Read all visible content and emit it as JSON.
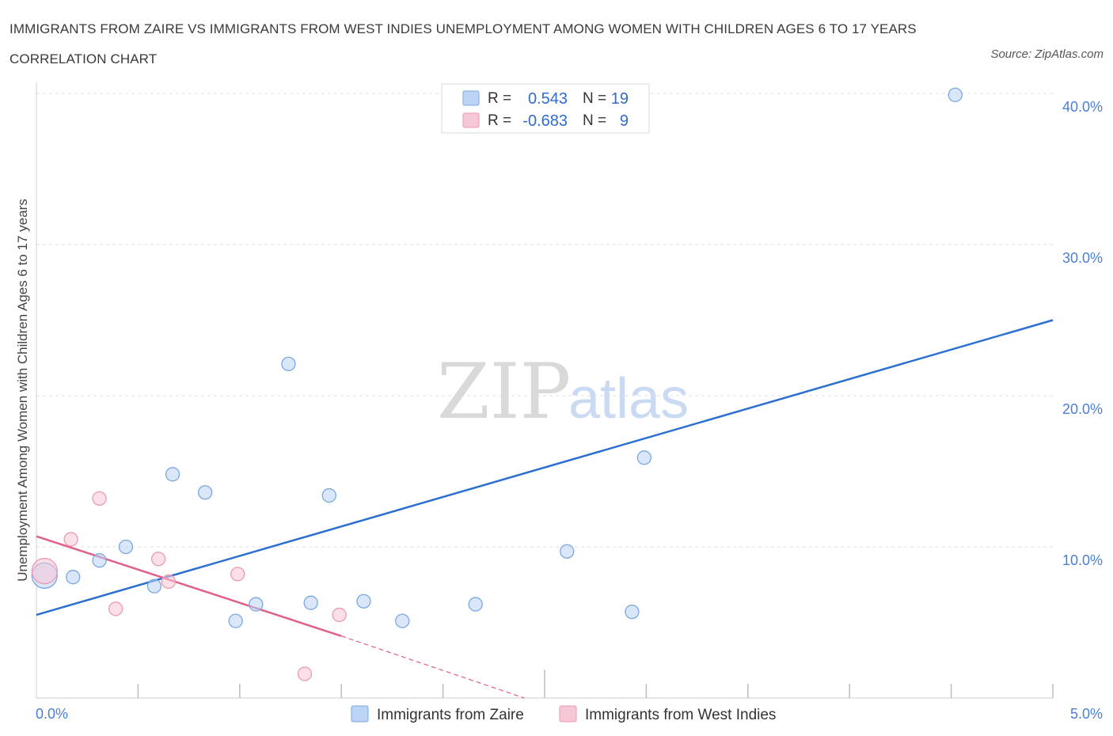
{
  "title": "IMMIGRANTS FROM ZAIRE VS IMMIGRANTS FROM WEST INDIES UNEMPLOYMENT AMONG WOMEN WITH CHILDREN AGES 6 TO 17 YEARS CORRELATION CHART",
  "source": "Source: ZipAtlas.com",
  "watermark": {
    "zip": "ZIP",
    "atlas": "atlas"
  },
  "legend": {
    "r_label": "R =",
    "n_label": "N =",
    "series": [
      {
        "r": "0.543",
        "n": "19"
      },
      {
        "r": "-0.683",
        "n": "9"
      }
    ]
  },
  "colors": {
    "zaire_fill": "#bcd4f5",
    "zaire_stroke": "#7aa7e0",
    "zaire_line": "#2b6fd0",
    "westindies_fill": "#f8c7d6",
    "westindies_stroke": "#ec9ab4",
    "westindies_line": "#e0608a",
    "grid": "#e2e2e2",
    "tick_text": "#4a7fd4"
  },
  "chart_data": {
    "type": "scatter",
    "title": "IMMIGRANTS FROM ZAIRE VS IMMIGRANTS FROM WEST INDIES UNEMPLOYMENT AMONG WOMEN WITH CHILDREN AGES 6 TO 17 YEARS CORRELATION CHART",
    "xlabel": "",
    "ylabel": "Unemployment Among Women with Children Ages 6 to 17 years",
    "xlim": [
      0,
      5
    ],
    "ylim": [
      0,
      40
    ],
    "x_tick_labels": [
      "0.0%",
      "5.0%"
    ],
    "y_ticks": [
      10,
      20,
      30,
      40
    ],
    "y_tick_labels": [
      "10.0%",
      "20.0%",
      "30.0%",
      "40.0%"
    ],
    "grid": true,
    "legend_position": "top-center",
    "series": [
      {
        "name": "Immigrants from Zaire",
        "points": [
          {
            "x": 0.04,
            "y": 8.1,
            "big": true
          },
          {
            "x": 0.18,
            "y": 8.0
          },
          {
            "x": 0.31,
            "y": 9.1
          },
          {
            "x": 0.44,
            "y": 10.0
          },
          {
            "x": 0.58,
            "y": 7.4
          },
          {
            "x": 0.67,
            "y": 14.8
          },
          {
            "x": 0.83,
            "y": 13.6
          },
          {
            "x": 0.98,
            "y": 5.1
          },
          {
            "x": 1.08,
            "y": 6.2
          },
          {
            "x": 1.24,
            "y": 22.1
          },
          {
            "x": 1.35,
            "y": 6.3
          },
          {
            "x": 1.44,
            "y": 13.4
          },
          {
            "x": 1.61,
            "y": 6.4
          },
          {
            "x": 1.8,
            "y": 5.1
          },
          {
            "x": 2.16,
            "y": 6.2
          },
          {
            "x": 2.61,
            "y": 9.7
          },
          {
            "x": 2.93,
            "y": 5.7
          },
          {
            "x": 2.99,
            "y": 15.9
          },
          {
            "x": 4.52,
            "y": 39.9
          }
        ],
        "trend": {
          "x0": 0,
          "y0": 5.5,
          "x1": 5,
          "y1": 25.0
        }
      },
      {
        "name": "Immigrants from West Indies",
        "points": [
          {
            "x": 0.04,
            "y": 8.4,
            "big": true
          },
          {
            "x": 0.17,
            "y": 10.5
          },
          {
            "x": 0.31,
            "y": 13.2
          },
          {
            "x": 0.39,
            "y": 5.9
          },
          {
            "x": 0.6,
            "y": 9.2
          },
          {
            "x": 0.65,
            "y": 7.7
          },
          {
            "x": 0.99,
            "y": 8.2
          },
          {
            "x": 1.32,
            "y": 1.6
          },
          {
            "x": 1.49,
            "y": 5.5
          }
        ],
        "trend": {
          "x0": 0,
          "y0": 10.7,
          "x1": 1.5,
          "y1": 4.1
        },
        "trend_dashed": {
          "x0": 1.5,
          "y0": 4.1,
          "x1": 2.4,
          "y1": 0
        }
      }
    ]
  }
}
